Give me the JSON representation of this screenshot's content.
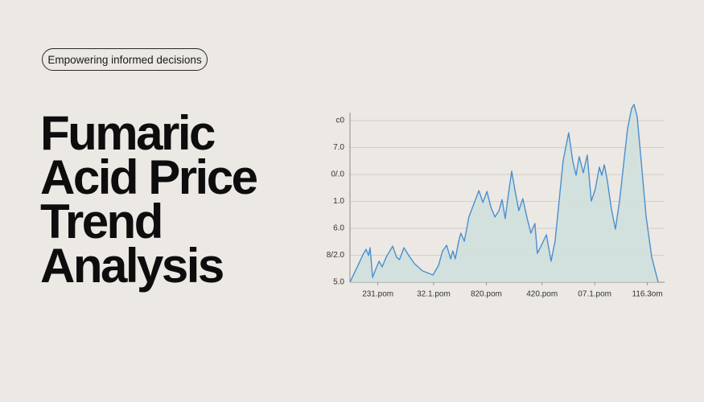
{
  "badge": "Empowering informed decisions",
  "title_lines": [
    "Fumaric",
    "Acid Price",
    "Trend",
    "Analysis"
  ],
  "chart_data": {
    "type": "area",
    "x": [
      0,
      2.6,
      4.4,
      5.2,
      6,
      6.5,
      7.3,
      8.3,
      9.4,
      10.4,
      11.7,
      13.8,
      15,
      16,
      17.4,
      19,
      20.8,
      23.4,
      26.8,
      28.6,
      29.9,
      31.2,
      32.5,
      33.2,
      34,
      35.1,
      35.8,
      36.9,
      38.4,
      40.3,
      41.6,
      42.9,
      44.2,
      45.5,
      46.8,
      48.1,
      49.1,
      50.1,
      51.2,
      52.2,
      53.2,
      54.5,
      55.8,
      57.1,
      58.4,
      59.7,
      60.5,
      61.8,
      63.4,
      64.9,
      66.2,
      67.5,
      68.8,
      70.6,
      71.9,
      73,
      74,
      75.3,
      76.6,
      77.9,
      79.2,
      80.5,
      81.3,
      82.1,
      83.1,
      84.4,
      85.7,
      87,
      88.3,
      89.6,
      90.9,
      91.7,
      92.7,
      94,
      95.6,
      97.4,
      99.5
    ],
    "values": [
      0,
      0.63,
      1.07,
      1.22,
      0.99,
      1.28,
      0.18,
      0.48,
      0.78,
      0.57,
      0.93,
      1.34,
      0.93,
      0.84,
      1.28,
      0.99,
      0.69,
      0.42,
      0.27,
      0.63,
      1.16,
      1.37,
      0.87,
      1.16,
      0.87,
      1.52,
      1.82,
      1.52,
      2.42,
      3.01,
      3.4,
      2.96,
      3.37,
      2.78,
      2.42,
      2.66,
      3.07,
      2.36,
      3.31,
      4.12,
      3.46,
      2.66,
      3.1,
      2.42,
      1.82,
      2.18,
      1.07,
      1.37,
      1.76,
      0.78,
      1.52,
      3.01,
      4.51,
      5.55,
      4.51,
      3.97,
      4.66,
      4.06,
      4.72,
      3.01,
      3.46,
      4.27,
      3.97,
      4.36,
      3.76,
      2.72,
      1.97,
      3.01,
      4.36,
      5.7,
      6.45,
      6.6,
      6.15,
      4.51,
      2.42,
      0.93,
      0
    ],
    "color": "#4a8fd0",
    "fill_color": "#cfe0dd",
    "xlim": [
      0,
      100
    ],
    "xticks": [
      {
        "value": 9,
        "label": "231.pom"
      },
      {
        "value": 27,
        "label": "32.1.pom"
      },
      {
        "value": 44,
        "label": "820.pom"
      },
      {
        "value": 62,
        "label": "420.pom"
      },
      {
        "value": 79,
        "label": "07.1.pom"
      },
      {
        "value": 96,
        "label": "116.3om"
      }
    ],
    "ylim": [
      0,
      7
    ],
    "yticks": [
      {
        "value": 0,
        "label": "5.0"
      },
      {
        "value": 1,
        "label": "8/2.0"
      },
      {
        "value": 2,
        "label": "6.0"
      },
      {
        "value": 3,
        "label": "1.0"
      },
      {
        "value": 4,
        "label": "0/.0"
      },
      {
        "value": 5,
        "label": "7.0"
      },
      {
        "value": 6,
        "label": "c0"
      }
    ],
    "grid": true
  }
}
